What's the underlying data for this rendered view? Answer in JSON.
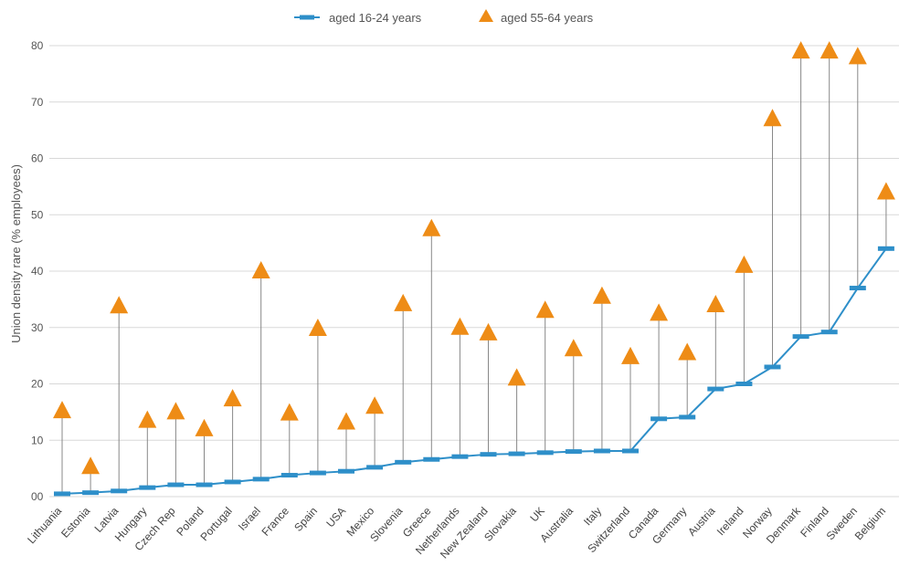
{
  "chart_data": {
    "type": "line",
    "title": "",
    "xlabel": "",
    "ylabel": "Union density rare (% employees)",
    "ylim": [
      0,
      80
    ],
    "y_ticks": [
      "00",
      "10",
      "20",
      "30",
      "40",
      "50",
      "60",
      "70",
      "80"
    ],
    "grid": true,
    "legend_position": "top-center",
    "colors": {
      "young": "#2E8FC9",
      "old": "#EE8C16",
      "stem": "#888888",
      "grid": "#D8D8D8"
    },
    "categories": [
      "Lithuania",
      "Estonia",
      "Latvia",
      "Hungary",
      "Czech Rep",
      "Poland",
      "Portugal",
      "Israel",
      "France",
      "Spain",
      "USA",
      "Mexico",
      "Slovenia",
      "Greece",
      "Netherlands",
      "New Zealand",
      "Slovakia",
      "UK",
      "Australia",
      "Italy",
      "Switzerland",
      "Canada",
      "Germany",
      "Austria",
      "Ireland",
      "Norway",
      "Denmark",
      "Finland",
      "Sweden",
      "Belgium"
    ],
    "series": [
      {
        "name": "aged 16-24 years",
        "marker": "dash",
        "connected": true,
        "values": [
          0.5,
          0.7,
          1.0,
          1.6,
          2.1,
          2.1,
          2.6,
          3.1,
          3.8,
          4.2,
          4.5,
          5.2,
          6.1,
          6.6,
          7.1,
          7.5,
          7.6,
          7.8,
          8.0,
          8.1,
          8.1,
          13.8,
          14.1,
          19.1,
          20.0,
          23.0,
          28.4,
          29.2,
          37.0,
          44.0
        ]
      },
      {
        "name": "aged 55-64 years",
        "marker": "triangle",
        "connected": false,
        "values": [
          15.2,
          5.3,
          33.8,
          13.5,
          15.0,
          12.0,
          17.3,
          40.0,
          14.8,
          29.8,
          13.2,
          16.0,
          34.2,
          47.5,
          30.0,
          29.0,
          21.0,
          33.0,
          26.2,
          35.5,
          24.8,
          32.5,
          25.5,
          34.0,
          41.0,
          67.0,
          79.0,
          79.0,
          78.0,
          54.0
        ]
      }
    ]
  }
}
